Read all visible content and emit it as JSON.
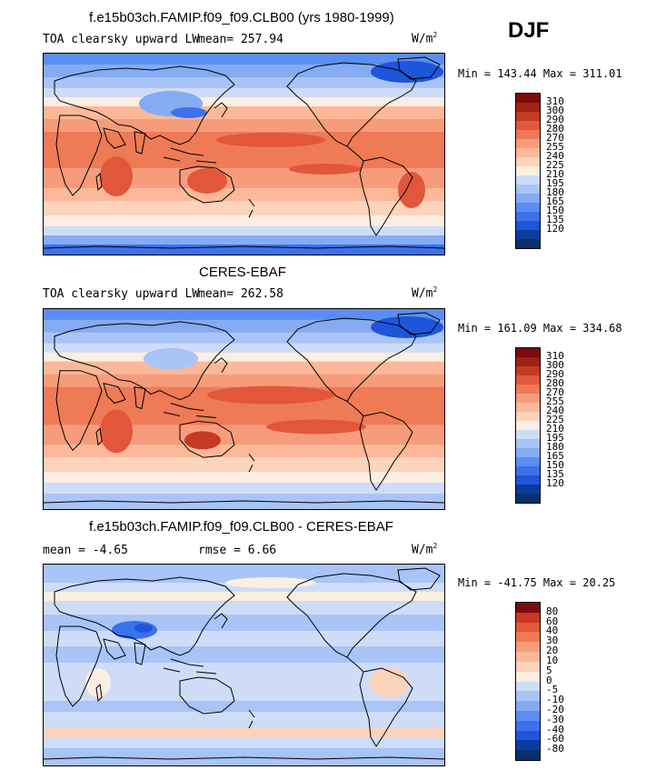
{
  "season": "DJF",
  "colors": {
    "abs_scale": [
      "#08306b",
      "#0b3c9c",
      "#1f55d9",
      "#3b71ea",
      "#5b8ef0",
      "#85abf3",
      "#a9c4f6",
      "#cfdcf7",
      "#fbeee2",
      "#fcd3bb",
      "#fbb999",
      "#f79c7b",
      "#ef7a56",
      "#e2573a",
      "#c63a23",
      "#9e2411",
      "#7a0c0c"
    ],
    "diff_scale": [
      "#08306b",
      "#0b3c9c",
      "#1f55d9",
      "#3b71ea",
      "#5b8ef0",
      "#85abf3",
      "#a9c4f6",
      "#cfdcf7",
      "#fbeee2",
      "#fcd3bb",
      "#fbb999",
      "#f79c7b",
      "#ef7a56",
      "#e2573a",
      "#c63a23",
      "#7a0c0c"
    ]
  },
  "panels": [
    {
      "title": "f.e15b03ch.FAMIP.f09_f09.CLB00 (yrs 1980-1999)",
      "left_label": "TOA clearsky upward LW",
      "stat_label": "mean= 257.94",
      "unit": "W/m",
      "unit_exp": "2",
      "minmax": "Min = 143.44 Max = 311.01",
      "kind": "abs",
      "levels": [
        "310",
        "300",
        "290",
        "280",
        "270",
        "255",
        "240",
        "225",
        "210",
        "195",
        "180",
        "165",
        "150",
        "135",
        "120"
      ]
    },
    {
      "title": "CERES-EBAF",
      "left_label": "TOA clearsky upward LW",
      "stat_label": "mean= 262.58",
      "unit": "W/m",
      "unit_exp": "2",
      "minmax": "Min = 161.09 Max = 334.68",
      "kind": "abs",
      "levels": [
        "310",
        "300",
        "290",
        "280",
        "270",
        "255",
        "240",
        "225",
        "210",
        "195",
        "180",
        "165",
        "150",
        "135",
        "120"
      ]
    },
    {
      "title": "f.e15b03ch.FAMIP.f09_f09.CLB00 - CERES-EBAF",
      "left_label": "mean =   -4.65",
      "stat_label": "rmse =    6.66",
      "unit": "W/m",
      "unit_exp": "2",
      "minmax": "Min = -41.75 Max =  20.25",
      "kind": "diff",
      "levels": [
        "80",
        "60",
        "40",
        "30",
        "20",
        "10",
        "5",
        "0",
        "-5",
        "-10",
        "-20",
        "-30",
        "-40",
        "-60",
        "-80"
      ]
    }
  ]
}
